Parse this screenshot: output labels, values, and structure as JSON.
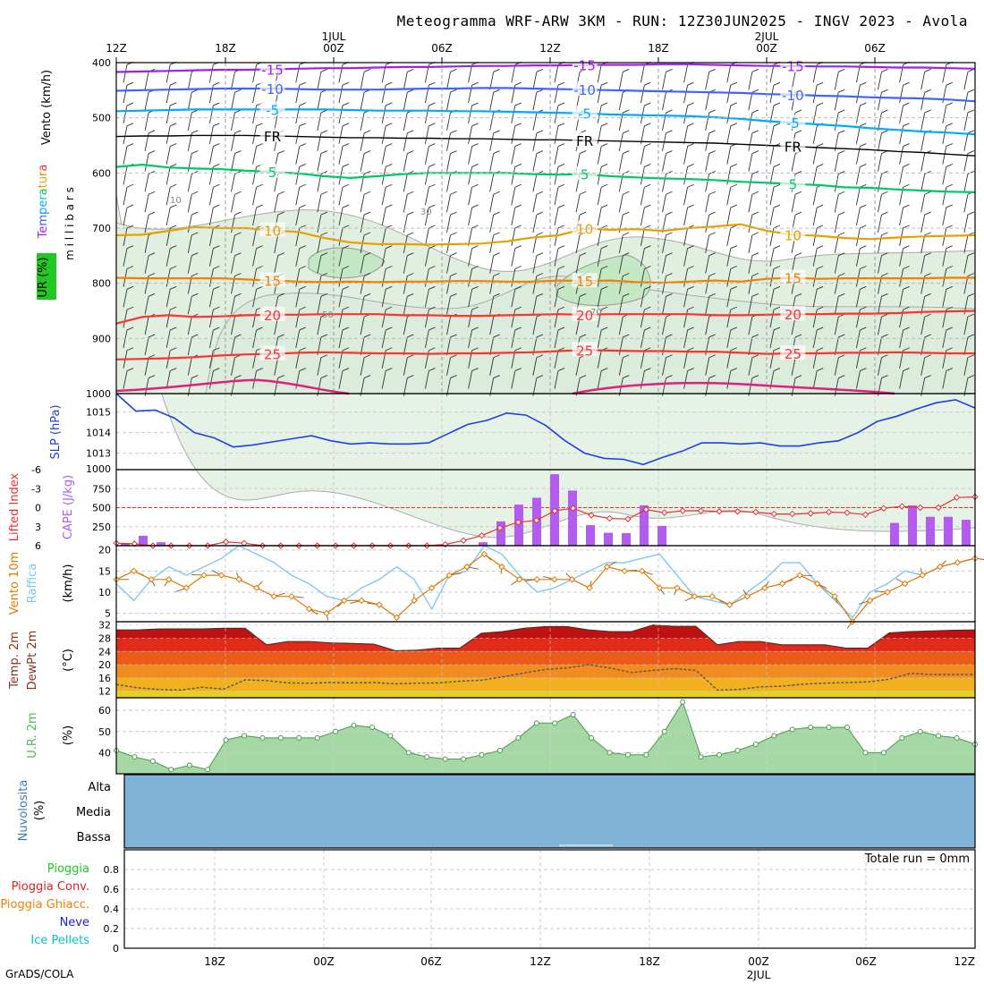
{
  "header": {
    "title": "Meteogramma WRF-ARW 3KM - RUN: 12Z30JUN2025 - INGV 2023 - Avola",
    "credit": "GrADS/COLA"
  },
  "colors": {
    "wind": "#000000",
    "temperature_label": [
      "#a020f0",
      "#3c64ff",
      "#00aaff",
      "#00c8c8",
      "#00c864",
      "#e6a000",
      "#f08000",
      "#ff3030"
    ],
    "humidity": "#22c822",
    "slp": "#2040e0",
    "lifted_index": "#e83030",
    "cape": "#b45cf0",
    "wind10m": "#e07800",
    "gust": "#80c8f0",
    "temp2m": "#883322",
    "rh2m": "#55b855",
    "cloud": "#7fb3d8",
    "rain": "#22c822",
    "conv_rain": "#e82020",
    "freezing_rain": "#f08000",
    "snow": "#2020e0",
    "ice_pellets": "#00c8c8"
  },
  "top_axis": {
    "ticks": [
      "12Z",
      "18Z",
      "00Z",
      "06Z",
      "12Z",
      "18Z",
      "00Z",
      "06Z"
    ],
    "dates": [
      {
        "label": "1JUL",
        "tick_index": 2
      },
      {
        "label": "2JUL",
        "tick_index": 6
      }
    ]
  },
  "bottom_axis": {
    "ticks": [
      "18Z",
      "00Z",
      "06Z",
      "12Z",
      "18Z",
      "00Z",
      "06Z",
      "12Z"
    ],
    "date": {
      "label": "2JUL",
      "tick_index": 5
    }
  },
  "labels": {
    "vento_kmh": "Vento (km/h)",
    "temperatura": "Temperatura",
    "ur_pct": "UR (%)",
    "millibars": "m i l l i b a r s",
    "slp": "SLP (hPa)",
    "lifted_index": "Lifted Index",
    "cape": "CAPE (J/kg)",
    "vento10m": "Vento 10m",
    "raffica": "Raffica",
    "kmh": "(km/h)",
    "temp2m": "Temp. 2m",
    "dewpt2m": "DewPt 2m",
    "celsius": "(°C)",
    "ur2m": "U.R. 2m",
    "pct": "(%)",
    "nuvolosita": "Nuvolosita",
    "nuvolosita_pct": "(%)",
    "cloud_alta": "Alta",
    "cloud_media": "Media",
    "cloud_bassa": "Bassa",
    "totale_run": "Totale run = 0mm",
    "precip_legend": [
      "Pioggia",
      "Pioggia Conv.",
      "Pioggia Ghiacc.",
      "Neve",
      "Ice Pellets"
    ]
  },
  "chart_data": [
    {
      "type": "line",
      "panel": "upper-air",
      "ylabel": "millibars",
      "ylim": [
        1000,
        400
      ],
      "yticks": [
        400,
        500,
        600,
        700,
        800,
        900,
        1000
      ],
      "isotherm_labels": [
        "-15",
        "-10",
        "-5",
        "FR",
        "5",
        "10",
        "15",
        "20",
        "25"
      ],
      "rh_contour_labels": [
        "10",
        "30",
        "50",
        "70"
      ],
      "series": [
        {
          "name": "-15",
          "values": [
            417,
            416,
            415,
            414,
            413,
            413,
            412,
            411,
            410,
            410,
            409,
            408,
            408,
            407,
            406,
            406,
            405,
            405,
            404,
            404,
            404,
            403,
            403,
            404,
            405,
            406,
            406,
            407,
            407,
            408,
            409,
            409,
            410,
            411
          ]
        },
        {
          "name": "-10",
          "values": [
            451,
            450,
            449,
            448,
            447,
            447,
            447,
            448,
            449,
            449,
            449,
            448,
            447,
            447,
            446,
            446,
            447,
            448,
            449,
            450,
            451,
            452,
            453,
            454,
            455,
            457,
            458,
            460,
            461,
            463,
            464,
            465,
            467,
            470
          ]
        },
        {
          "name": "-5",
          "values": [
            488,
            487,
            486,
            485,
            485,
            485,
            485,
            485,
            485,
            486,
            487,
            487,
            487,
            488,
            488,
            489,
            490,
            491,
            492,
            494,
            495,
            496,
            497,
            499,
            502,
            506,
            509,
            512,
            515,
            519,
            522,
            525,
            527,
            530
          ]
        },
        {
          "name": "FR",
          "values": [
            534,
            533,
            533,
            532,
            532,
            532,
            533,
            534,
            535,
            536,
            536,
            537,
            537,
            538,
            538,
            539,
            540,
            540,
            541,
            542,
            543,
            544,
            545,
            546,
            548,
            550,
            552,
            554,
            556,
            558,
            561,
            563,
            566,
            569
          ]
        },
        {
          "name": "5",
          "values": [
            589,
            585,
            590,
            592,
            593,
            596,
            598,
            601,
            606,
            609,
            606,
            602,
            600,
            600,
            600,
            600,
            602,
            603,
            602,
            606,
            608,
            610,
            611,
            613,
            616,
            618,
            620,
            622,
            626,
            627,
            630,
            632,
            634,
            635
          ]
        },
        {
          "name": "10",
          "values": [
            713,
            712,
            705,
            698,
            700,
            700,
            704,
            707,
            718,
            726,
            729,
            729,
            730,
            729,
            728,
            724,
            717,
            713,
            701,
            703,
            702,
            705,
            700,
            697,
            693,
            705,
            712,
            714,
            718,
            720,
            717,
            715,
            714,
            713
          ]
        },
        {
          "name": "15",
          "values": [
            790,
            791,
            791,
            791,
            791,
            793,
            795,
            797,
            798,
            797,
            798,
            797,
            797,
            796,
            796,
            797,
            797,
            795,
            796,
            795,
            798,
            799,
            797,
            795,
            797,
            792,
            790,
            792,
            791,
            791,
            791,
            791,
            790,
            790
          ]
        },
        {
          "name": "20",
          "values": [
            873,
            861,
            858,
            861,
            860,
            858,
            857,
            857,
            856,
            856,
            856,
            858,
            858,
            859,
            859,
            858,
            857,
            856,
            857,
            856,
            856,
            856,
            856,
            858,
            858,
            857,
            856,
            856,
            855,
            855,
            854,
            852,
            851,
            850
          ]
        },
        {
          "name": "25",
          "values": [
            938,
            937,
            936,
            934,
            931,
            929,
            928,
            926,
            925,
            926,
            927,
            927,
            928,
            927,
            927,
            926,
            925,
            923,
            921,
            922,
            923,
            923,
            924,
            924,
            926,
            928,
            927,
            927,
            926,
            926,
            925,
            926,
            927,
            927
          ]
        }
      ]
    },
    {
      "type": "line",
      "panel": "slp",
      "ylabel": "SLP (hPa)",
      "ylim": [
        1012.2,
        1015.9
      ],
      "yticks": [
        1013,
        1014,
        1015
      ],
      "series": [
        {
          "name": "SLP",
          "values": [
            1015.9,
            1015.05,
            1015.1,
            1014.7,
            1014.0,
            1013.75,
            1013.3,
            1013.4,
            1013.55,
            1013.7,
            1013.85,
            1013.6,
            1013.45,
            1013.5,
            1013.45,
            1013.45,
            1013.5,
            1013.95,
            1014.4,
            1014.6,
            1014.95,
            1014.85,
            1014.35,
            1013.6,
            1013.0,
            1012.75,
            1012.7,
            1012.45,
            1012.8,
            1013.1,
            1013.5,
            1013.5,
            1013.45,
            1013.5,
            1013.35,
            1013.35,
            1013.5,
            1013.6,
            1014.0,
            1014.55,
            1014.8,
            1015.15,
            1015.45,
            1015.6,
            1015.2
          ]
        }
      ]
    },
    {
      "type": "bar",
      "panel": "cape-lifted-index",
      "ylabel": "CAPE (J/kg)",
      "yticks_left": [
        "-6",
        "-3",
        "0",
        "3",
        "6"
      ],
      "yticks_cape": [
        250,
        500,
        750,
        1000
      ],
      "cape_values": [
        30,
        130,
        45,
        0,
        0,
        0,
        0,
        0,
        0,
        0,
        0,
        0,
        0,
        0,
        0,
        0,
        0,
        0,
        0,
        0,
        45,
        320,
        540,
        630,
        940,
        725,
        270,
        170,
        165,
        530,
        260,
        0,
        0,
        0,
        0,
        0,
        0,
        0,
        0,
        0,
        0,
        0,
        0,
        300,
        530,
        380,
        380,
        340
      ],
      "lifted_index": [
        5.6,
        5.7,
        6.0,
        6.0,
        6.0,
        6.0,
        5.4,
        5.6,
        6.0,
        6.0,
        6.0,
        6.0,
        6.0,
        6.0,
        6.0,
        6.0,
        6.0,
        6.0,
        5.8,
        5.2,
        4.4,
        3.2,
        2.3,
        2.0,
        0.5,
        0.1,
        1.2,
        1.7,
        1.8,
        0.3,
        0.8,
        0.5,
        0.5,
        0.6,
        0.6,
        0.7,
        1.0,
        1.0,
        0.9,
        0.7,
        0.8,
        1.1,
        0.1,
        -0.2,
        0.0,
        0.0,
        -1.6,
        -1.7
      ]
    },
    {
      "type": "line",
      "panel": "wind10m",
      "ylabel": "(km/h)",
      "ylim": [
        3,
        21
      ],
      "yticks": [
        5,
        10,
        15,
        20
      ],
      "series": [
        {
          "name": "Vento 10m",
          "values": [
            13,
            15,
            13,
            13,
            11,
            14,
            14,
            13,
            11,
            9,
            9,
            6,
            5,
            8,
            8,
            7,
            4,
            8,
            11,
            14,
            16,
            19,
            16,
            13,
            13,
            13,
            13,
            11,
            16,
            15,
            15,
            11,
            11,
            9,
            9,
            7,
            9,
            11,
            12,
            14,
            12,
            9,
            3,
            8,
            10,
            12,
            14,
            16,
            17,
            18
          ]
        },
        {
          "name": "Raffica",
          "values": [
            12,
            8,
            13,
            16,
            14,
            16,
            18,
            21,
            19,
            17,
            14,
            12,
            9,
            8,
            11,
            13,
            16,
            13,
            6,
            14,
            15,
            21,
            19,
            14,
            10,
            11,
            13,
            15,
            17,
            17,
            18,
            19,
            14,
            9,
            8,
            7,
            10,
            13,
            17,
            17,
            12,
            8,
            4,
            10,
            12,
            15,
            14,
            16,
            17,
            18
          ]
        }
      ]
    },
    {
      "type": "area",
      "panel": "temp2m",
      "ylabel": "(°C)",
      "ylim": [
        10,
        33
      ],
      "yticks": [
        12,
        16,
        20,
        24,
        28,
        32
      ],
      "series": [
        {
          "name": "Temp. 2m",
          "values": [
            30.5,
            30.5,
            30.8,
            30.8,
            30.8,
            31.0,
            31.0,
            26.0,
            27.0,
            27.0,
            26.6,
            26.4,
            26.2,
            24.2,
            24.4,
            25.0,
            25.0,
            29.5,
            30.0,
            31.0,
            31.5,
            31.5,
            30.5,
            30.0,
            30.0,
            32.0,
            31.6,
            31.6,
            26.0,
            27.0,
            27.0,
            26.0,
            26.0,
            26.0,
            25.0,
            25.0,
            29.6,
            30.0,
            30.2,
            30.4,
            30.5
          ]
        },
        {
          "name": "DewPt 2m",
          "values": [
            14.0,
            13.0,
            12.5,
            12.3,
            13.2,
            12.6,
            15.4,
            15.2,
            14.5,
            14.4,
            14.6,
            14.5,
            14.6,
            14.2,
            14.4,
            14.5,
            15.0,
            15.3,
            16.3,
            17.5,
            18.6,
            19.0,
            20.0,
            19.0,
            17.6,
            18.3,
            18.8,
            18.3,
            12.3,
            12.5,
            13.3,
            13.5,
            14.1,
            14.4,
            14.6,
            14.8,
            15.6,
            17.4,
            17.0,
            17.0,
            17.0
          ]
        }
      ]
    },
    {
      "type": "area",
      "panel": "rh2m",
      "ylabel": "(%)",
      "ylim": [
        30,
        66
      ],
      "yticks": [
        40,
        50,
        60
      ],
      "series": [
        {
          "name": "U.R. 2m",
          "values": [
            41,
            38,
            36,
            32,
            34,
            32,
            46,
            48,
            47,
            47,
            47,
            47,
            50,
            53,
            52,
            48,
            40,
            38,
            37,
            37,
            39,
            41,
            47,
            54,
            54,
            58,
            47,
            40,
            39,
            39,
            50,
            64,
            38,
            39,
            41,
            44,
            48,
            51,
            52,
            52,
            52,
            40,
            40,
            47,
            50,
            48,
            47,
            44
          ]
        }
      ]
    },
    {
      "type": "area",
      "panel": "cloud-cover",
      "rows": [
        "Alta",
        "Media",
        "Bassa"
      ],
      "values": [
        100,
        100,
        100
      ]
    },
    {
      "type": "bar",
      "panel": "precipitation",
      "ylim": [
        0,
        1.0
      ],
      "yticks": [
        0,
        0.2,
        0.4,
        0.6,
        0.8
      ],
      "series": [
        {
          "name": "Pioggia",
          "values": [
            0,
            0,
            0,
            0,
            0,
            0,
            0,
            0
          ]
        },
        {
          "name": "Pioggia Conv.",
          "values": [
            0,
            0,
            0,
            0,
            0,
            0,
            0,
            0
          ]
        },
        {
          "name": "Pioggia Ghiacc.",
          "values": [
            0,
            0,
            0,
            0,
            0,
            0,
            0,
            0
          ]
        },
        {
          "name": "Neve",
          "values": [
            0,
            0,
            0,
            0,
            0,
            0,
            0,
            0
          ]
        },
        {
          "name": "Ice Pellets",
          "values": [
            0,
            0,
            0,
            0,
            0,
            0,
            0,
            0
          ]
        }
      ]
    }
  ]
}
